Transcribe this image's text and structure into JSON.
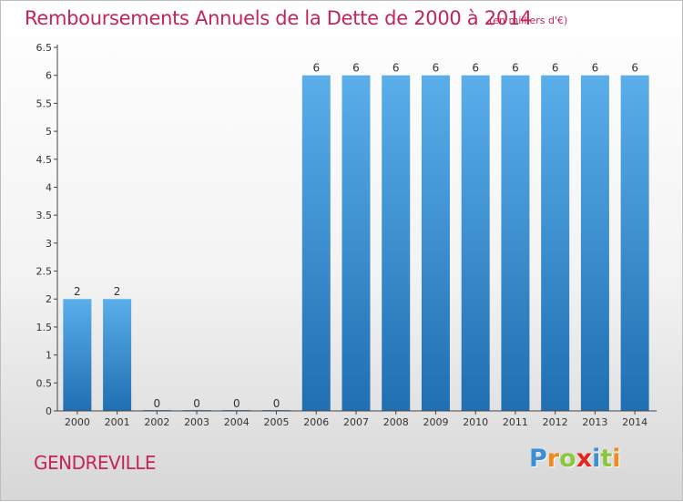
{
  "header": {
    "title": "Remboursements Annuels de la Dette de 2000 à 2014",
    "unit": "(en milliers d'€)"
  },
  "commune": "GENDREVILLE",
  "brand": {
    "letters": [
      "P",
      "r",
      "o",
      "x",
      "i",
      "t",
      "i"
    ],
    "colors": [
      "#3a8fd6",
      "#f18a1c",
      "#8cc63f",
      "#e8231b",
      "#3a8fd6",
      "#8cc63f",
      "#f18a1c"
    ]
  },
  "colors": {
    "bar_light": "#5aaeea",
    "bar_dark": "#1f6fb2",
    "axis": "#444444",
    "text": "#333333",
    "accent": "#c4245b"
  },
  "chart_data": {
    "type": "bar",
    "categories": [
      "2000",
      "2001",
      "2002",
      "2003",
      "2004",
      "2005",
      "2006",
      "2007",
      "2008",
      "2009",
      "2010",
      "2011",
      "2012",
      "2013",
      "2014"
    ],
    "values": [
      2,
      2,
      0,
      0,
      0,
      0,
      6,
      6,
      6,
      6,
      6,
      6,
      6,
      6,
      6
    ],
    "data_labels": [
      "2",
      "2",
      "0",
      "0",
      "0",
      "0",
      "6",
      "6",
      "6",
      "6",
      "6",
      "6",
      "6",
      "6",
      "6"
    ],
    "y_ticks": [
      "0",
      "0.5",
      "1",
      "1.5",
      "2",
      "2.5",
      "3",
      "3.5",
      "4",
      "4.5",
      "5",
      "5.5",
      "6",
      "6.5"
    ],
    "title": "Remboursements Annuels de la Dette de 2000 à 2014",
    "xlabel": "",
    "ylabel": "",
    "ylim": [
      0,
      6.5
    ],
    "grid": false,
    "legend": "none"
  }
}
